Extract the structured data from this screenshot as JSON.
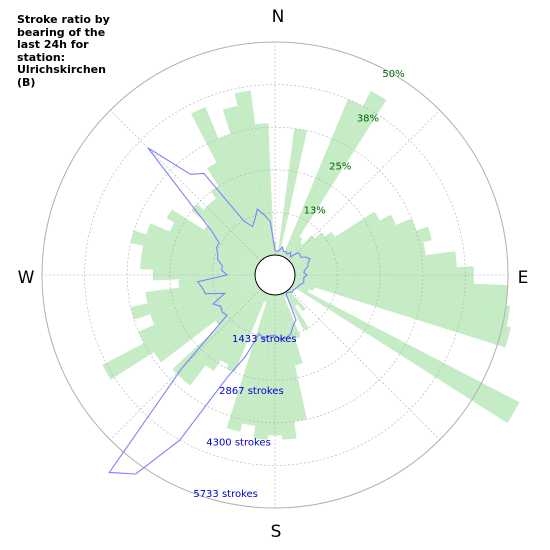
{
  "chart_data": {
    "type": "polar-bar",
    "title": "Stroke ratio by bearing of the last 24h for station: Ulrichskirchen (B)",
    "compass": {
      "n": "N",
      "e": "E",
      "s": "S",
      "w": "W"
    },
    "ratio_ticks": [
      {
        "value": 13,
        "label": "13%"
      },
      {
        "value": 25,
        "label": "25%"
      },
      {
        "value": 38,
        "label": "38%"
      },
      {
        "value": 50,
        "label": "50%"
      }
    ],
    "stroke_ticks": [
      {
        "value": 1433,
        "label": "1433 strokes"
      },
      {
        "value": 2867,
        "label": "2867 strokes"
      },
      {
        "value": 4300,
        "label": "4300 strokes"
      },
      {
        "value": 5733,
        "label": "5733 strokes"
      }
    ],
    "ratio_max": 50,
    "strokes_max": 5733,
    "bin_width_deg": 5,
    "ratio_series": {
      "name": "stroke ratio",
      "color": "#c6ecc6",
      "bearings": [
        0,
        5,
        10,
        15,
        20,
        25,
        30,
        35,
        40,
        45,
        50,
        55,
        60,
        65,
        70,
        75,
        80,
        85,
        90,
        95,
        100,
        105,
        110,
        115,
        120,
        125,
        130,
        135,
        140,
        145,
        150,
        155,
        160,
        165,
        170,
        175,
        180,
        185,
        190,
        195,
        200,
        205,
        210,
        215,
        220,
        225,
        230,
        235,
        240,
        245,
        250,
        255,
        260,
        265,
        270,
        275,
        280,
        285,
        290,
        295,
        300,
        305,
        310,
        315,
        320,
        325,
        330,
        335,
        340,
        345,
        350,
        355
      ],
      "values": [
        3,
        1,
        30,
        2,
        1,
        40,
        44,
        6,
        5,
        8,
        10,
        12,
        23,
        26,
        30,
        33,
        31,
        38,
        42,
        50,
        51,
        52,
        5,
        4,
        60,
        1,
        1,
        1,
        6,
        4,
        10,
        1,
        11,
        17,
        30,
        34,
        33,
        34,
        31,
        33,
        2,
        20,
        19,
        22,
        28,
        28,
        13,
        29,
        41,
        30,
        26,
        30,
        26,
        18,
        24,
        27,
        27,
        30,
        27,
        22,
        24,
        15,
        20,
        18,
        18,
        20,
        25,
        38,
        30,
        36,
        39,
        31
      ]
    },
    "stroke_series": {
      "name": "strokes",
      "color": "#8080ff",
      "bearings": [
        0,
        5,
        10,
        15,
        20,
        25,
        30,
        35,
        40,
        45,
        50,
        55,
        60,
        65,
        70,
        75,
        80,
        85,
        90,
        95,
        100,
        105,
        110,
        115,
        120,
        125,
        130,
        135,
        140,
        145,
        150,
        155,
        160,
        165,
        170,
        175,
        180,
        185,
        190,
        195,
        200,
        205,
        210,
        215,
        220,
        225,
        230,
        235,
        240,
        245,
        250,
        255,
        260,
        265,
        270,
        275,
        280,
        285,
        290,
        295,
        300,
        305,
        310,
        315,
        320,
        325,
        330,
        335,
        340,
        345,
        350,
        355
      ],
      "values": [
        120,
        100,
        140,
        240,
        130,
        160,
        110,
        200,
        100,
        300,
        340,
        300,
        420,
        500,
        410,
        380,
        280,
        240,
        320,
        240,
        250,
        260,
        200,
        160,
        140,
        120,
        100,
        120,
        60,
        40,
        60,
        800,
        900,
        1100,
        1180,
        1200,
        1080,
        1100,
        1200,
        1100,
        1800,
        2500,
        4600,
        6000,
        6400,
        3000,
        1150,
        1200,
        1150,
        1300,
        900,
        1400,
        1450,
        1550,
        750,
        900,
        900,
        1060,
        1100,
        1200,
        1200,
        1560,
        2400,
        4300,
        3000,
        2800,
        1150,
        900,
        1050,
        1300,
        1100,
        900
      ]
    },
    "grid": true,
    "colors": {
      "ratio": "#c6ecc6",
      "strokes": "#8080ff",
      "ratio_label": "#006400",
      "stroke_label": "#0000cd"
    }
  }
}
